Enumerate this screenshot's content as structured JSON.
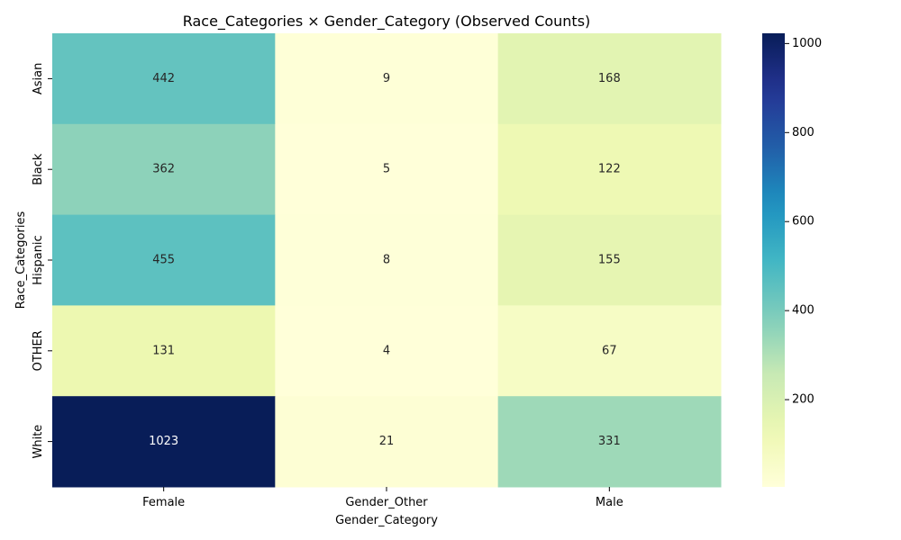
{
  "chart_data": {
    "type": "heatmap",
    "title": "Race_Categories × Gender_Category (Observed Counts)",
    "xlabel": "Gender_Category",
    "ylabel": "Race_Categories",
    "x_categories": [
      "Female",
      "Gender_Other",
      "Male"
    ],
    "y_categories": [
      "Asian",
      "Black",
      "Hispanic",
      "OTHER",
      "White"
    ],
    "values": [
      [
        442,
        9,
        168
      ],
      [
        362,
        5,
        122
      ],
      [
        455,
        8,
        155
      ],
      [
        131,
        4,
        67
      ],
      [
        1023,
        21,
        331
      ]
    ],
    "colormap": "YlGnBu",
    "colorbar": {
      "min": 4,
      "max": 1023,
      "ticks": [
        200,
        400,
        600,
        800,
        1000
      ]
    },
    "grid": false
  }
}
